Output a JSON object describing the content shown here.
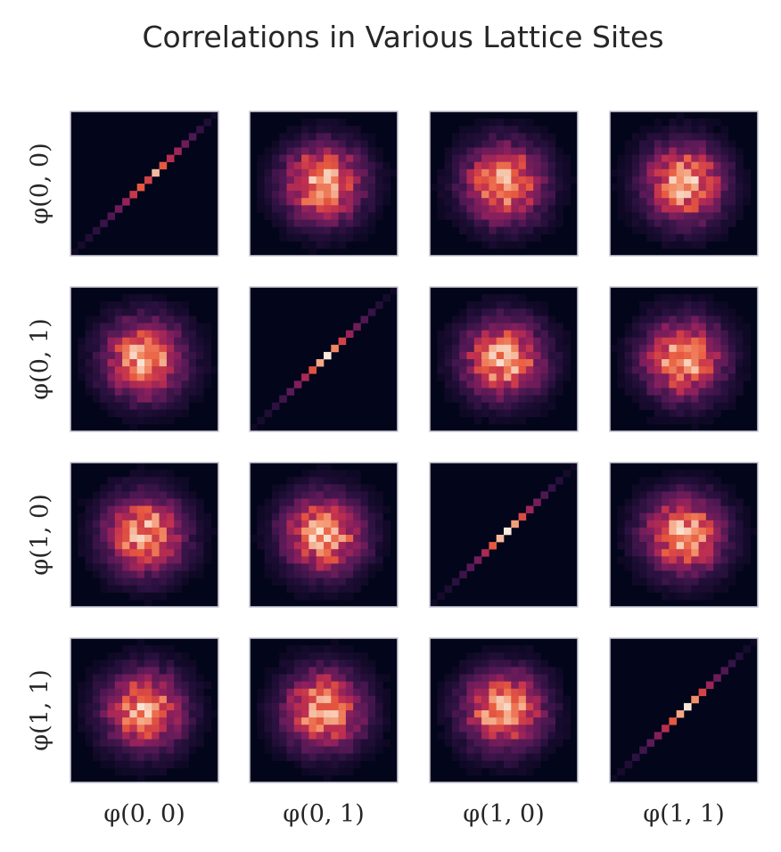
{
  "chart_data": {
    "type": "heatmap",
    "title": "Correlations in Various Lattice Sites",
    "layout": "4x4 pairwise 2D histograms",
    "row_labels": [
      "φ(0, 0)",
      "φ(0, 1)",
      "φ(1, 0)",
      "φ(1, 1)"
    ],
    "col_labels": [
      "φ(0, 0)",
      "φ(0, 1)",
      "φ(1, 0)",
      "φ(1, 1)"
    ],
    "bins": 20,
    "colormap": "rocket",
    "tick_labels": "none",
    "grid": false,
    "panel_border_color": "#c8cad6",
    "background_color": "#03051a",
    "diagonal": {
      "description": "identity (x = y) line histogram",
      "panels": [
        {
          "row": 0,
          "col": 0,
          "bin_values": [
            0.04,
            0.06,
            0.09,
            0.12,
            0.16,
            0.22,
            0.3,
            0.4,
            0.52,
            0.62,
            0.55,
            0.85,
            0.62,
            0.48,
            0.42,
            0.3,
            0.22,
            0.14,
            0.09,
            0.05
          ]
        },
        {
          "row": 1,
          "col": 1,
          "bin_values": [
            0.04,
            0.06,
            0.09,
            0.13,
            0.18,
            0.25,
            0.35,
            0.45,
            0.6,
            0.8,
            1.0,
            0.72,
            0.55,
            0.4,
            0.3,
            0.22,
            0.15,
            0.1,
            0.06,
            0.04
          ]
        },
        {
          "row": 2,
          "col": 2,
          "bin_values": [
            0.04,
            0.06,
            0.08,
            0.12,
            0.17,
            0.24,
            0.32,
            0.45,
            0.62,
            0.85,
            1.0,
            0.78,
            0.58,
            0.42,
            0.32,
            0.22,
            0.15,
            0.1,
            0.06,
            0.04
          ]
        },
        {
          "row": 3,
          "col": 3,
          "bin_values": [
            0.04,
            0.06,
            0.09,
            0.13,
            0.18,
            0.26,
            0.36,
            0.48,
            0.62,
            0.8,
            0.98,
            0.74,
            0.56,
            0.42,
            0.3,
            0.22,
            0.15,
            0.1,
            0.06,
            0.04
          ]
        }
      ]
    },
    "off_diagonal": {
      "description": "roughly isotropic Gaussian blob centered in panel, peak density ~0.85-1.0 near center",
      "center_bin": [
        9.5,
        9.5
      ],
      "sigma_bins": 3.6,
      "peak_density": 0.9
    },
    "colors": {
      "cmap_stops": [
        "#03051a",
        "#2b1140",
        "#5a1a57",
        "#8b1f5d",
        "#c1304f",
        "#e85a3f",
        "#f3936d",
        "#f6c3a9",
        "#faebdd"
      ]
    }
  }
}
